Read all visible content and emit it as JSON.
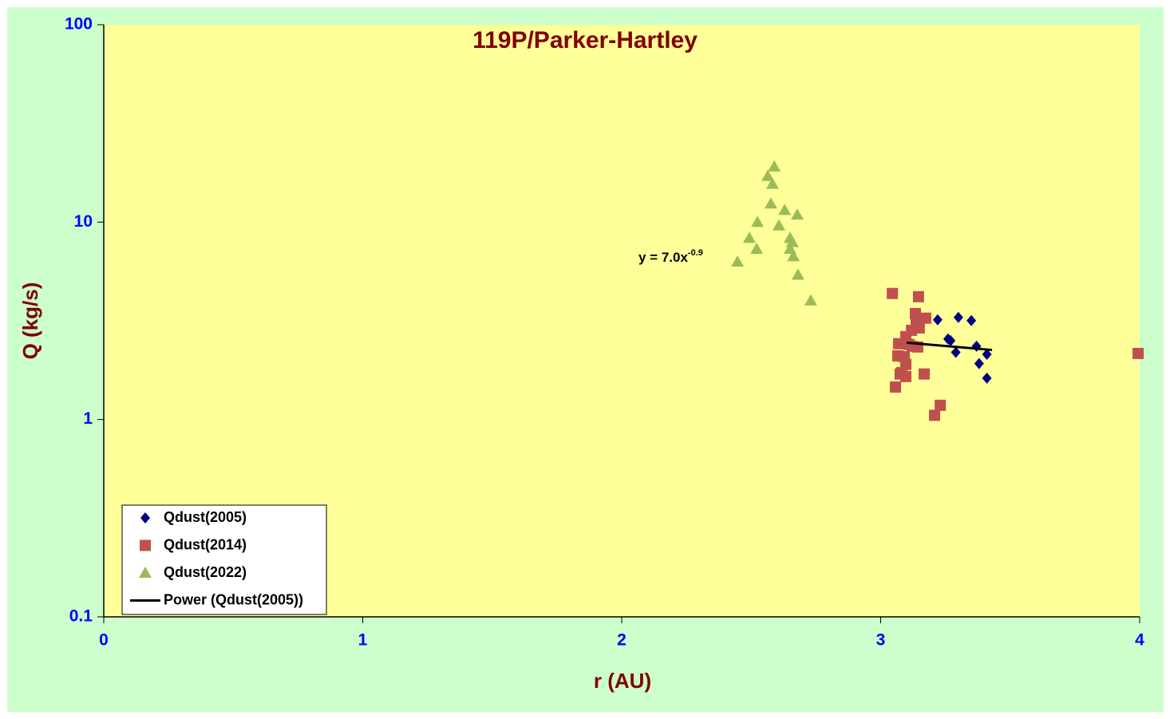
{
  "chart_data": {
    "type": "scatter",
    "title": "119P/Parker-Hartley",
    "x_label": "r (AU)",
    "y_label": "Q (kg/s)",
    "xlim": [
      0,
      4
    ],
    "xticks": [
      0,
      1,
      2,
      3,
      4
    ],
    "ylim": [
      0.1,
      100
    ],
    "yticks": [
      0.1,
      1,
      10,
      100
    ],
    "y_scale": "log",
    "legend": "lower left",
    "annotation": {
      "text": "y = 7.0x",
      "exponent": "-0.9"
    },
    "series": [
      {
        "name": "Qdust(2005)",
        "color": "#000080",
        "marker": "diamond",
        "x": [
          3.22,
          3.3,
          3.35,
          3.26,
          3.27,
          3.37,
          3.29,
          3.41,
          3.38,
          3.41
        ],
        "values": [
          3.2,
          3.29,
          3.17,
          2.56,
          2.51,
          2.35,
          2.19,
          2.14,
          1.92,
          1.62
        ]
      },
      {
        "name": "Qdust(2014)",
        "color": "#c0504d",
        "marker": "square",
        "x": [
          3.045,
          3.146,
          3.134,
          3.174,
          3.137,
          3.149,
          3.119,
          3.097,
          3.069,
          3.109,
          3.143,
          3.066,
          3.091,
          3.097,
          3.082,
          3.075,
          3.168,
          3.097,
          3.057,
          3.23,
          3.208,
          3.994,
          3.122
        ],
        "values": [
          4.35,
          4.19,
          3.44,
          3.26,
          3.2,
          2.91,
          2.83,
          2.63,
          2.42,
          2.4,
          2.33,
          2.1,
          2.08,
          1.9,
          1.73,
          1.7,
          1.7,
          1.65,
          1.46,
          1.18,
          1.05,
          2.16,
          2.35
        ]
      },
      {
        "name": "Qdust(2022)",
        "color": "#9bbb59",
        "marker": "triangle",
        "x": [
          2.589,
          2.564,
          2.582,
          2.576,
          2.629,
          2.678,
          2.524,
          2.607,
          2.65,
          2.493,
          2.659,
          2.521,
          2.65,
          2.663,
          2.447,
          2.681,
          2.73
        ],
        "values": [
          19.1,
          17.1,
          15.6,
          12.4,
          11.5,
          10.9,
          10.0,
          9.6,
          8.3,
          8.3,
          7.9,
          7.3,
          7.3,
          6.7,
          6.3,
          5.4,
          4.0
        ]
      },
      {
        "name": "Power (Qdust(2005))",
        "color": "#000000",
        "marker": "line",
        "x": [
          3.1,
          3.43
        ],
        "values": [
          2.45,
          2.25
        ]
      }
    ]
  }
}
